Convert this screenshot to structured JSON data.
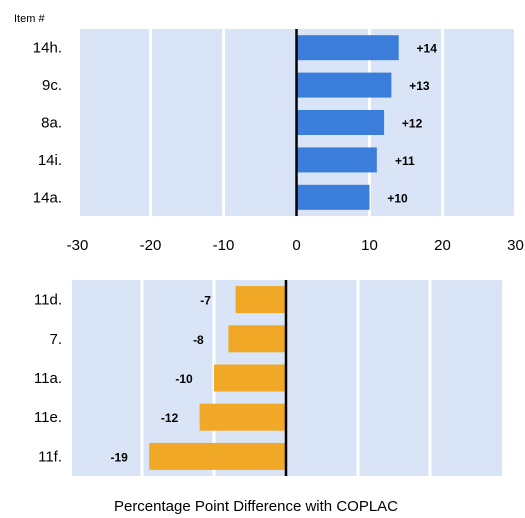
{
  "chart_data": [
    {
      "type": "bar",
      "orientation": "horizontal",
      "category_header": "Item #",
      "categories": [
        "14h.",
        "9c.",
        "8a.",
        "14i.",
        "14a."
      ],
      "values": [
        14,
        13,
        12,
        11,
        10
      ],
      "data_labels": [
        "+14",
        "+13",
        "+12",
        "+11",
        "+10"
      ],
      "xlim": [
        -30,
        30
      ],
      "x_ticks": [
        "-30",
        "-20",
        "-10",
        "0",
        "10",
        "20",
        "30"
      ],
      "grid": true,
      "color": "#3a7ddb"
    },
    {
      "type": "bar",
      "orientation": "horizontal",
      "categories": [
        "11d.",
        "7.",
        "11a.",
        "11e.",
        "11f."
      ],
      "values": [
        -7,
        -8,
        -10,
        -12,
        -19
      ],
      "data_labels": [
        "-7",
        "-8",
        "-10",
        "-12",
        "-19"
      ],
      "xlim": [
        -30,
        30
      ],
      "grid": true,
      "color": "#f0a826"
    }
  ],
  "xlabel": "Percentage Point Difference with COPLAC",
  "colors": {
    "plot_background": "#d9e4f7",
    "grid": "#ffffff",
    "zero_line": "#000000"
  }
}
